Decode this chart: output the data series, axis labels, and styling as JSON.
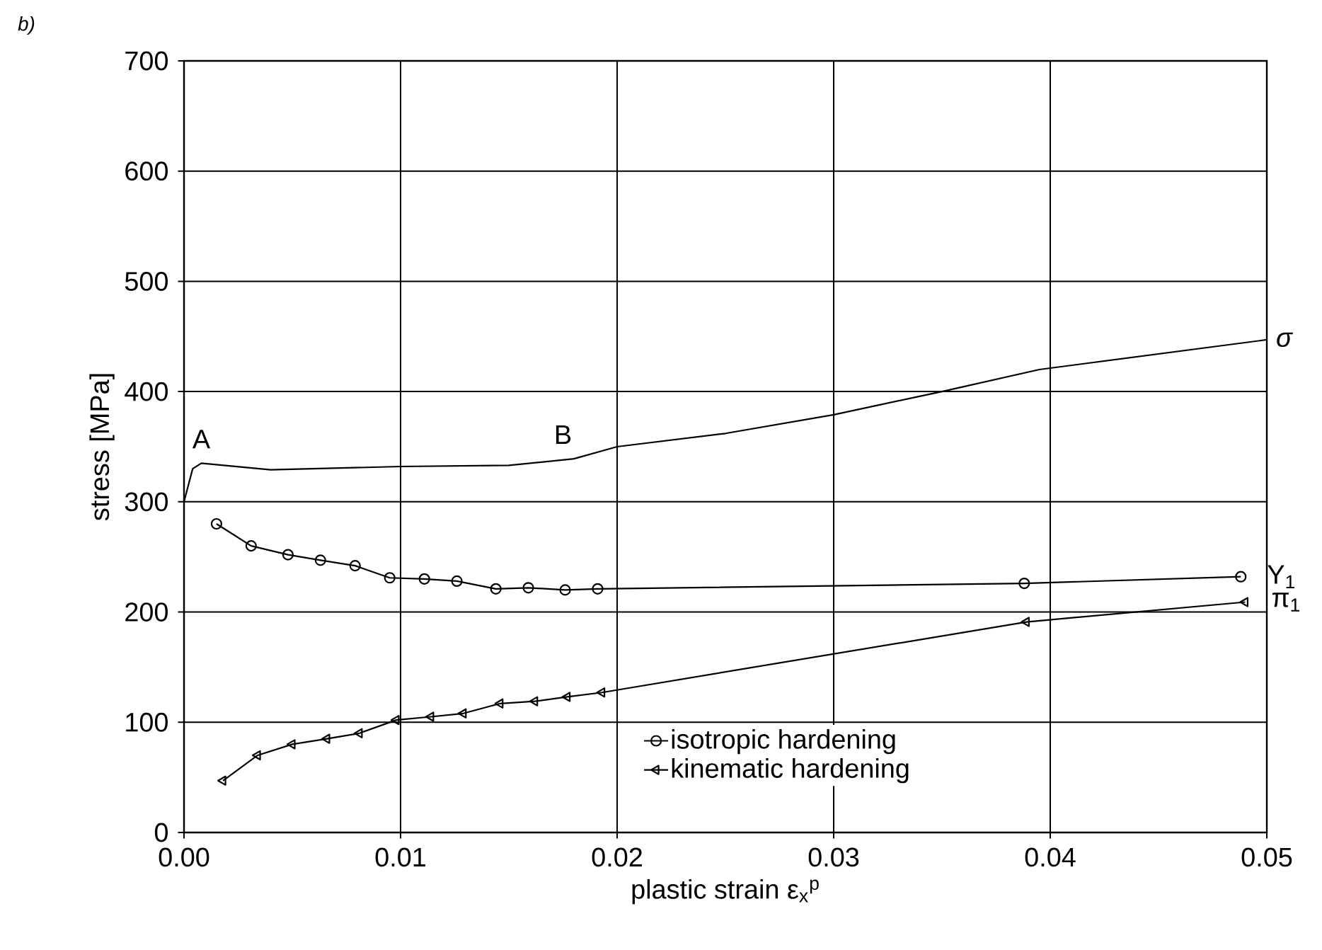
{
  "chart_data": {
    "type": "line",
    "xlabel": "plastic strain ε$_{x}$$^{p}$",
    "ylabel": "stress [MPa]",
    "xlim": [
      0,
      0.05
    ],
    "ylim": [
      0,
      700
    ],
    "xticks": [
      {
        "value": 0,
        "label": "0.00"
      },
      0.01,
      0.02,
      0.03,
      0.04,
      0.05
    ],
    "yticks": [
      0,
      100,
      200,
      300,
      400,
      500,
      600,
      700
    ],
    "grid": true,
    "legend": "bottom right",
    "series": [
      {
        "name": "σ",
        "color": "#000000",
        "marker": "none",
        "x": [
          0,
          0.0004,
          0.0008,
          0.004,
          0.01,
          0.015,
          0.018,
          0.02,
          0.025,
          0.03,
          0.035,
          0.0395,
          0.05
        ],
        "values": [
          300,
          330,
          335,
          329,
          332,
          333,
          339,
          350,
          362,
          379,
          400,
          420,
          447
        ]
      },
      {
        "name": "isotropic hardening",
        "color": "#000000",
        "marker": "circle",
        "x": [
          0.0015,
          0.0031,
          0.0048,
          0.0063,
          0.0079,
          0.0095,
          0.0111,
          0.0126,
          0.0144,
          0.0159,
          0.0176,
          0.0191,
          0.0388,
          0.0488
        ],
        "values": [
          280,
          260,
          252,
          247,
          242,
          231,
          230,
          228,
          221,
          222,
          220,
          221,
          226,
          232
        ]
      },
      {
        "name": "kinematic hardening",
        "color": "#000000",
        "marker": "triangle",
        "x": [
          0.0018,
          0.0034,
          0.005,
          0.0066,
          0.0081,
          0.0098,
          0.0114,
          0.0129,
          0.0146,
          0.0162,
          0.0177,
          0.0193,
          0.0389,
          0.049
        ],
        "values": [
          47,
          70,
          80,
          85,
          90,
          102,
          105,
          108,
          117,
          119,
          123,
          127,
          191,
          209
        ]
      }
    ],
    "annotations": [
      "b)",
      {
        "text": "A",
        "x": 0.0008,
        "y": 335
      },
      {
        "text": "B",
        "x": 0.0175,
        "y": 339
      },
      {
        "text": "Y$_{1}$",
        "x": 0.0488,
        "y": 232
      },
      {
        "text": "π$_{1}$",
        "x": 0.049,
        "y": 209
      }
    ]
  }
}
